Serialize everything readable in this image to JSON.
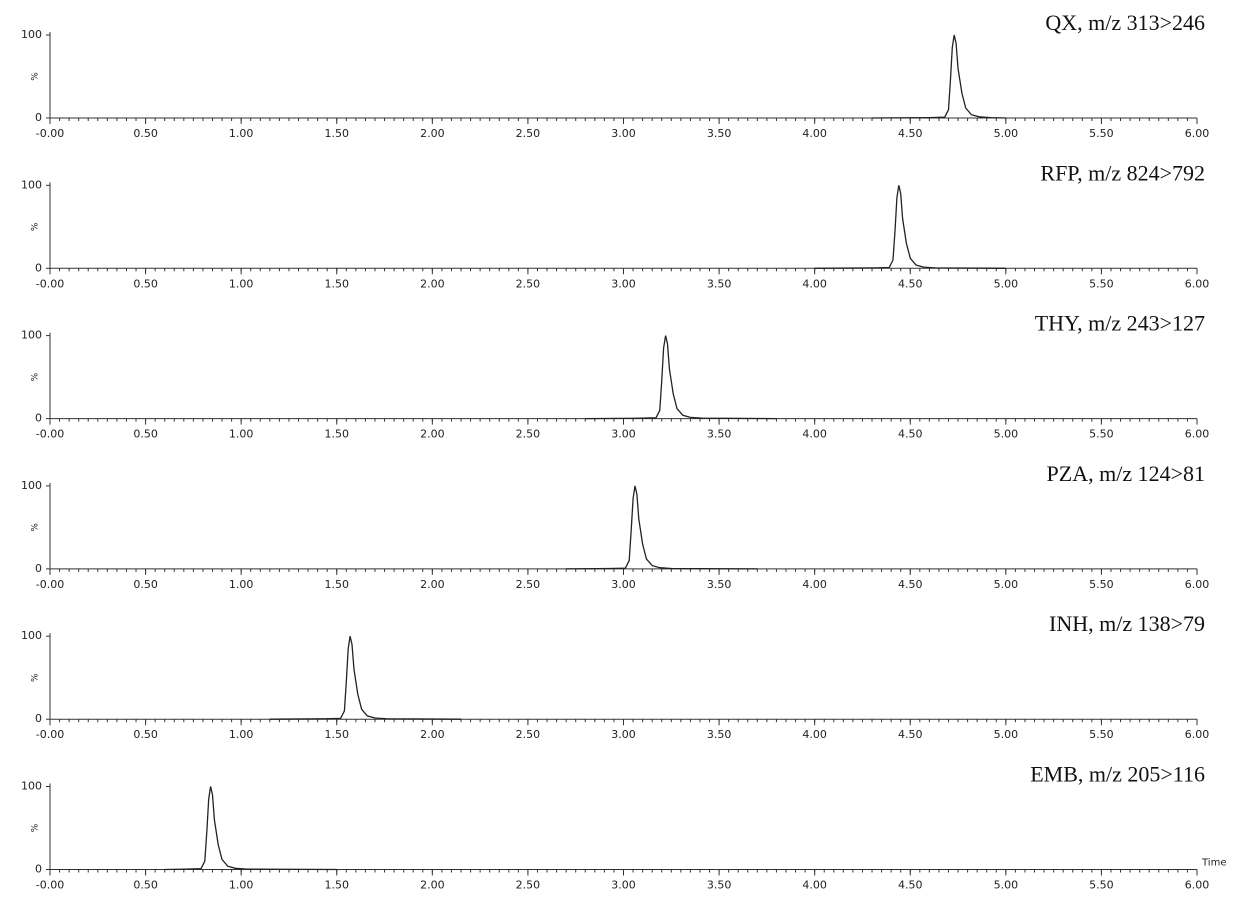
{
  "chart_data": [
    {
      "type": "line",
      "title": "QX, m/z 313>246",
      "ylabel": "%",
      "color": "#222",
      "xlim": [
        0,
        6
      ],
      "ylim": [
        0,
        100
      ],
      "yticks": [
        0,
        100
      ],
      "xticks": [
        {
          "value": 0,
          "label": "-0.00"
        },
        {
          "value": 0.5,
          "label": "0.50"
        },
        {
          "value": 1,
          "label": "1.00"
        },
        {
          "value": 1.5,
          "label": "1.50"
        },
        {
          "value": 2,
          "label": "2.00"
        },
        {
          "value": 2.5,
          "label": "2.50"
        },
        {
          "value": 3,
          "label": "3.00"
        },
        {
          "value": 3.5,
          "label": "3.50"
        },
        {
          "value": 4,
          "label": "4.00"
        },
        {
          "value": 4.5,
          "label": "4.50"
        },
        {
          "value": 5,
          "label": "5.00"
        },
        {
          "value": 5.5,
          "label": "5.50"
        },
        {
          "value": 6,
          "label": "6.00"
        }
      ],
      "x": [
        4.3,
        4.6,
        4.68,
        4.7,
        4.71,
        4.72,
        4.73,
        4.74,
        4.75,
        4.77,
        4.79,
        4.82,
        4.86,
        4.92,
        5.0
      ],
      "values": [
        0,
        0.5,
        1,
        10,
        45,
        85,
        100,
        90,
        60,
        30,
        12,
        4,
        1.5,
        0.5,
        0
      ]
    },
    {
      "type": "line",
      "title": "RFP, m/z 824>792",
      "ylabel": "%",
      "color": "#222",
      "xlim": [
        0,
        6
      ],
      "ylim": [
        0,
        100
      ],
      "yticks": [
        0,
        100
      ],
      "xticks": [
        {
          "value": 0,
          "label": "-0.00"
        },
        {
          "value": 0.5,
          "label": "0.50"
        },
        {
          "value": 1,
          "label": "1.00"
        },
        {
          "value": 1.5,
          "label": "1.50"
        },
        {
          "value": 2,
          "label": "2.00"
        },
        {
          "value": 2.5,
          "label": "2.50"
        },
        {
          "value": 3,
          "label": "3.00"
        },
        {
          "value": 3.5,
          "label": "3.50"
        },
        {
          "value": 4,
          "label": "4.00"
        },
        {
          "value": 4.5,
          "label": "4.50"
        },
        {
          "value": 5,
          "label": "5.00"
        },
        {
          "value": 5.5,
          "label": "5.50"
        },
        {
          "value": 6,
          "label": "6.00"
        }
      ],
      "x": [
        4.0,
        4.31,
        4.39,
        4.41,
        4.42,
        4.43,
        4.44,
        4.45,
        4.46,
        4.48,
        4.5,
        4.53,
        4.57,
        4.63,
        5.0
      ],
      "values": [
        0,
        0.5,
        1,
        10,
        45,
        85,
        100,
        90,
        60,
        30,
        12,
        4,
        1.5,
        0.5,
        0
      ]
    },
    {
      "type": "line",
      "title": "THY, m/z 243>127",
      "ylabel": "%",
      "color": "#222",
      "xlim": [
        0,
        6
      ],
      "ylim": [
        0,
        100
      ],
      "yticks": [
        0,
        100
      ],
      "xticks": [
        {
          "value": 0,
          "label": "-0.00"
        },
        {
          "value": 0.5,
          "label": "0.50"
        },
        {
          "value": 1,
          "label": "1.00"
        },
        {
          "value": 1.5,
          "label": "1.50"
        },
        {
          "value": 2,
          "label": "2.00"
        },
        {
          "value": 2.5,
          "label": "2.50"
        },
        {
          "value": 3,
          "label": "3.00"
        },
        {
          "value": 3.5,
          "label": "3.50"
        },
        {
          "value": 4,
          "label": "4.00"
        },
        {
          "value": 4.5,
          "label": "4.50"
        },
        {
          "value": 5,
          "label": "5.00"
        },
        {
          "value": 5.5,
          "label": "5.50"
        },
        {
          "value": 6,
          "label": "6.00"
        }
      ],
      "x": [
        2.8,
        3.09,
        3.17,
        3.19,
        3.2,
        3.21,
        3.22,
        3.23,
        3.24,
        3.26,
        3.28,
        3.31,
        3.35,
        3.41,
        3.8
      ],
      "values": [
        0,
        0.5,
        1,
        10,
        45,
        85,
        100,
        90,
        60,
        30,
        12,
        4,
        1.5,
        0.5,
        0
      ]
    },
    {
      "type": "line",
      "title": "PZA, m/z 124>81",
      "ylabel": "%",
      "color": "#222",
      "xlim": [
        0,
        6
      ],
      "ylim": [
        0,
        100
      ],
      "yticks": [
        0,
        100
      ],
      "xticks": [
        {
          "value": 0,
          "label": "-0.00"
        },
        {
          "value": 0.5,
          "label": "0.50"
        },
        {
          "value": 1,
          "label": "1.00"
        },
        {
          "value": 1.5,
          "label": "1.50"
        },
        {
          "value": 2,
          "label": "2.00"
        },
        {
          "value": 2.5,
          "label": "2.50"
        },
        {
          "value": 3,
          "label": "3.00"
        },
        {
          "value": 3.5,
          "label": "3.50"
        },
        {
          "value": 4,
          "label": "4.00"
        },
        {
          "value": 4.5,
          "label": "4.50"
        },
        {
          "value": 5,
          "label": "5.00"
        },
        {
          "value": 5.5,
          "label": "5.50"
        },
        {
          "value": 6,
          "label": "6.00"
        }
      ],
      "x": [
        2.7,
        2.93,
        3.01,
        3.03,
        3.04,
        3.05,
        3.06,
        3.07,
        3.08,
        3.1,
        3.12,
        3.15,
        3.19,
        3.25,
        3.7
      ],
      "values": [
        0,
        0.5,
        1,
        10,
        45,
        85,
        100,
        90,
        60,
        30,
        12,
        4,
        1.5,
        0.5,
        0
      ]
    },
    {
      "type": "line",
      "title": "INH, m/z 138>79",
      "ylabel": "%",
      "color": "#222",
      "xlim": [
        0,
        6
      ],
      "ylim": [
        0,
        100
      ],
      "yticks": [
        0,
        100
      ],
      "xticks": [
        {
          "value": 0,
          "label": "-0.00"
        },
        {
          "value": 0.5,
          "label": "0.50"
        },
        {
          "value": 1,
          "label": "1.00"
        },
        {
          "value": 1.5,
          "label": "1.50"
        },
        {
          "value": 2,
          "label": "2.00"
        },
        {
          "value": 2.5,
          "label": "2.50"
        },
        {
          "value": 3,
          "label": "3.00"
        },
        {
          "value": 3.5,
          "label": "3.50"
        },
        {
          "value": 4,
          "label": "4.00"
        },
        {
          "value": 4.5,
          "label": "4.50"
        },
        {
          "value": 5,
          "label": "5.00"
        },
        {
          "value": 5.5,
          "label": "5.50"
        },
        {
          "value": 6,
          "label": "6.00"
        }
      ],
      "x": [
        1.15,
        1.44,
        1.52,
        1.54,
        1.55,
        1.56,
        1.57,
        1.58,
        1.59,
        1.61,
        1.63,
        1.66,
        1.7,
        1.76,
        2.15
      ],
      "values": [
        0,
        0.5,
        1,
        10,
        45,
        85,
        100,
        90,
        60,
        30,
        12,
        4,
        1.5,
        0.5,
        0
      ]
    },
    {
      "type": "line",
      "title": "EMB, m/z 205>116",
      "ylabel": "%",
      "xlabel": "Time",
      "color": "#222",
      "xlim": [
        0,
        6
      ],
      "ylim": [
        0,
        100
      ],
      "yticks": [
        0,
        100
      ],
      "xticks": [
        {
          "value": 0,
          "label": "-0.00"
        },
        {
          "value": 0.5,
          "label": "0.50"
        },
        {
          "value": 1,
          "label": "1.00"
        },
        {
          "value": 1.5,
          "label": "1.50"
        },
        {
          "value": 2,
          "label": "2.00"
        },
        {
          "value": 2.5,
          "label": "2.50"
        },
        {
          "value": 3,
          "label": "3.00"
        },
        {
          "value": 3.5,
          "label": "3.50"
        },
        {
          "value": 4,
          "label": "4.00"
        },
        {
          "value": 4.5,
          "label": "4.50"
        },
        {
          "value": 5,
          "label": "5.00"
        },
        {
          "value": 5.5,
          "label": "5.50"
        },
        {
          "value": 6,
          "label": "6.00"
        }
      ],
      "x": [
        0.6,
        0.71,
        0.79,
        0.81,
        0.82,
        0.83,
        0.84,
        0.85,
        0.86,
        0.88,
        0.9,
        0.93,
        0.97,
        1.03,
        1.5
      ],
      "values": [
        0,
        0.5,
        1,
        10,
        45,
        85,
        100,
        90,
        60,
        30,
        12,
        4,
        1.5,
        0.5,
        0
      ]
    }
  ]
}
